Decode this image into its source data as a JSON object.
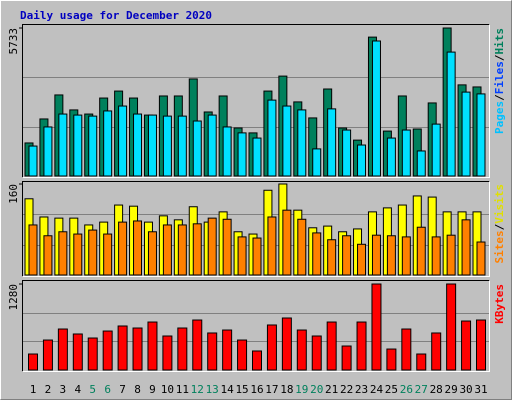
{
  "chart_data": [
    {
      "type": "bar",
      "title": "Daily usage for December 2020",
      "legend": [
        {
          "text": "Pages",
          "color": "#00C0FF"
        },
        {
          "text": "/",
          "color": "#000000"
        },
        {
          "text": "Files",
          "color": "#0040FF"
        },
        {
          "text": "/",
          "color": "#000000"
        },
        {
          "text": "Hits",
          "color": "#00805C"
        }
      ],
      "ylim": [
        0,
        5733
      ],
      "yticks": [
        5733
      ],
      "grid_divisions": 3,
      "series": [
        {
          "color": "#00805C",
          "values": [
            1280,
            2210,
            3140,
            2560,
            2400,
            3020,
            3290,
            3020,
            2360,
            3100,
            3100,
            3760,
            2480,
            3100,
            1860,
            1670,
            3290,
            3870,
            2870,
            2250,
            3370,
            1860,
            1390,
            5380,
            1740,
            3100,
            1820,
            2830,
            5733,
            3530,
            3450
          ]
        },
        {
          "color": "#00E0FF",
          "values": [
            1160,
            1900,
            2400,
            2360,
            2320,
            2520,
            2710,
            2400,
            2360,
            2320,
            2320,
            2130,
            2360,
            1900,
            1670,
            1470,
            2940,
            2710,
            2560,
            1050,
            2600,
            1780,
            1200,
            5230,
            1470,
            1780,
            970,
            2010,
            4800,
            3250,
            3180
          ]
        }
      ]
    },
    {
      "type": "bar",
      "legend": [
        {
          "text": "Sites",
          "color": "#FF8000"
        },
        {
          "text": "/",
          "color": "#000000"
        },
        {
          "text": "Visits",
          "color": "#E0E000"
        }
      ],
      "ylim": [
        0,
        160
      ],
      "yticks": [
        160
      ],
      "grid_divisions": 3,
      "series": [
        {
          "color": "#FFFF00",
          "values": [
            134,
            102,
            100,
            100,
            88,
            93,
            123,
            121,
            93,
            104,
            97,
            120,
            93,
            111,
            76,
            72,
            149,
            160,
            114,
            83,
            86,
            76,
            81,
            111,
            118,
            123,
            139,
            137,
            111,
            111,
            111
          ]
        },
        {
          "color": "#FF8000",
          "values": [
            88,
            69,
            76,
            72,
            79,
            72,
            93,
            95,
            76,
            88,
            88,
            90,
            100,
            98,
            67,
            65,
            102,
            114,
            98,
            74,
            62,
            69,
            54,
            70,
            69,
            67,
            84,
            67,
            70,
            97,
            58
          ]
        }
      ]
    },
    {
      "type": "bar",
      "legend": [
        {
          "text": "KBytes",
          "color": "#FF0000"
        }
      ],
      "ylim": [
        0,
        1280
      ],
      "yticks": [
        1280
      ],
      "grid_divisions": 3,
      "categories": [
        "1",
        "2",
        "3",
        "4",
        "5",
        "6",
        "7",
        "8",
        "9",
        "10",
        "11",
        "12",
        "13",
        "14",
        "15",
        "16",
        "17",
        "18",
        "19",
        "20",
        "21",
        "22",
        "23",
        "24",
        "25",
        "26",
        "27",
        "28",
        "29",
        "30",
        "31"
      ],
      "category_colors": [
        "#000000",
        "#000000",
        "#000000",
        "#000000",
        "#00805C",
        "#00805C",
        "#000000",
        "#000000",
        "#000000",
        "#000000",
        "#000000",
        "#00805C",
        "#00805C",
        "#000000",
        "#000000",
        "#000000",
        "#000000",
        "#000000",
        "#00805C",
        "#00805C",
        "#000000",
        "#000000",
        "#000000",
        "#000000",
        "#000000",
        "#00805C",
        "#00805C",
        "#000000",
        "#000000",
        "#000000",
        "#000000"
      ],
      "series": [
        {
          "color": "#FF0000",
          "values": [
            238,
            446,
            610,
            536,
            476,
            580,
            655,
            625,
            714,
            506,
            625,
            744,
            551,
            595,
            446,
            283,
            670,
            774,
            595,
            506,
            714,
            357,
            714,
            1280,
            312,
            610,
            238,
            551,
            1280,
            729,
            744
          ]
        }
      ]
    }
  ]
}
